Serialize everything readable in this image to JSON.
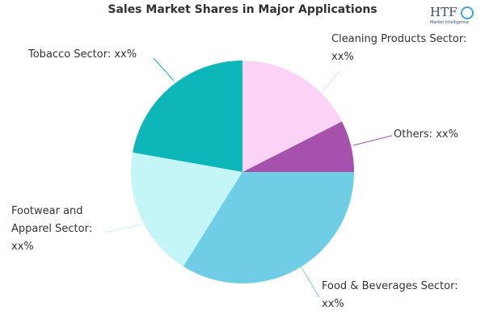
{
  "chart_data": {
    "type": "pie",
    "title": "Sales Market Shares in Major Applications",
    "start_angle_deg": 0,
    "direction": "counterclockwise",
    "slices": [
      {
        "label": "Others: xx%",
        "value": 7.5,
        "color": "#a651ab"
      },
      {
        "label": "Cleaning Products Sector:\nxx%",
        "value": 17.5,
        "color": "#fad3f7"
      },
      {
        "label": "Tobacco Sector: xx%",
        "value": 22.2,
        "color": "#0db6b9"
      },
      {
        "label": "Footwear and\nApparel Sector:\nxx%",
        "value": 18.9,
        "color": "#c4f6f7"
      },
      {
        "label": "Food & Beverages Sector:\nxx%",
        "value": 33.9,
        "color": "#6fcde5"
      }
    ]
  },
  "logo": {
    "text": "HTF",
    "subtext": "Market Intelligence"
  }
}
